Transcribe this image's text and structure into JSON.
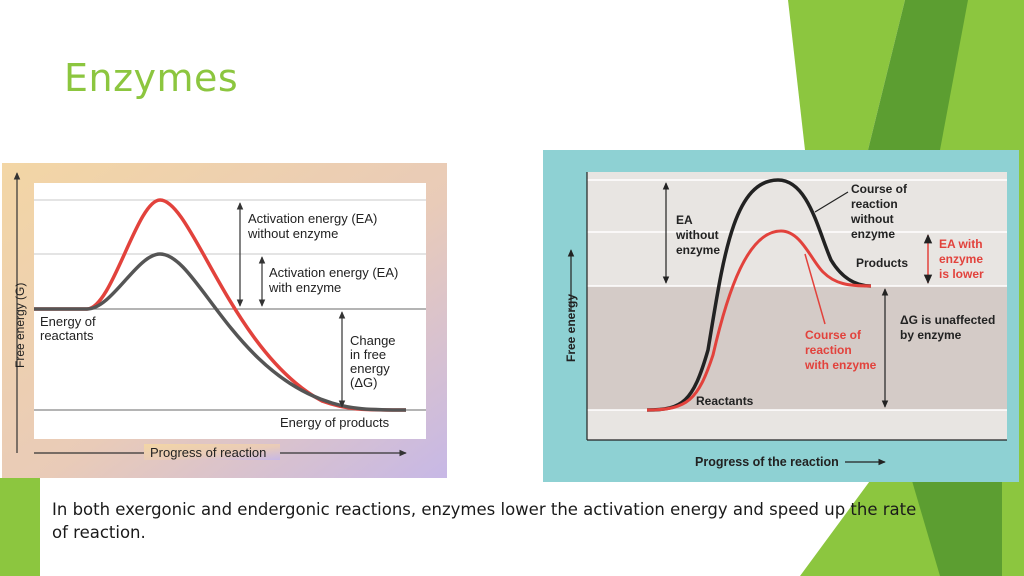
{
  "slide": {
    "title": "Enzymes",
    "caption": "In both exergonic and endergonic reactions, enzymes lower the activation energy and speed up the rate of reaction."
  },
  "colors": {
    "accent_green": "#8cc63f",
    "dark_green": "#5c9e31",
    "curve_red": "#e2423c",
    "curve_gray": "#555555",
    "right_teal": "#8ed1d3"
  },
  "figure_left": {
    "y_axis_label": "Free energy (G)",
    "x_axis_label": "Progress of reaction",
    "reactants_label": [
      "Energy of",
      "reactants"
    ],
    "products_label": "Energy of products",
    "ea_without_label": [
      "Activation energy (EA)",
      "without enzyme"
    ],
    "ea_with_label": [
      "Activation energy (EA)",
      "with enzyme"
    ],
    "delta_g_label": [
      "Change",
      "in free",
      "energy",
      "(ΔG)"
    ]
  },
  "figure_right": {
    "y_axis_label": "Free energy",
    "x_axis_label": "Progress of the reaction",
    "ea_without_label": [
      "EA",
      "without",
      "enzyme"
    ],
    "course_without_label": [
      "Course of",
      "reaction",
      "without",
      "enzyme"
    ],
    "ea_with_label": [
      "EA with",
      "enzyme",
      "is lower"
    ],
    "products_label": "Products",
    "delta_g_label": [
      "ΔG is unaffected",
      "by enzyme"
    ],
    "course_with_label": [
      "Course of",
      "reaction",
      "with enzyme"
    ],
    "reactants_label": "Reactants"
  }
}
